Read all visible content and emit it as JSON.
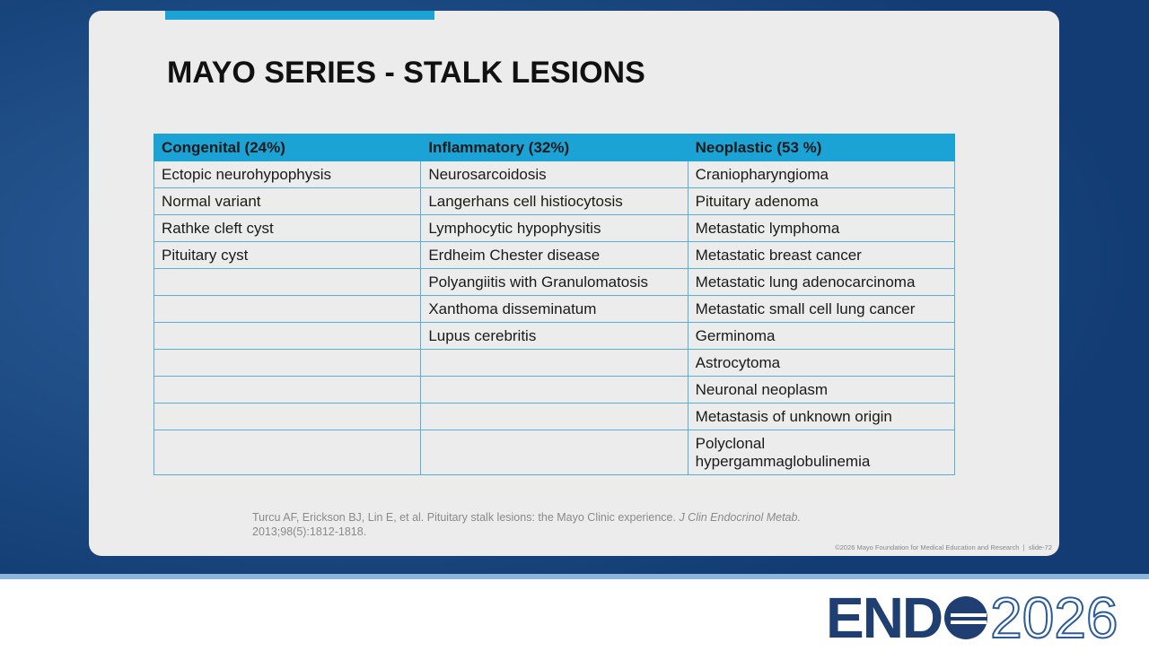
{
  "slide": {
    "title": "MAYO SERIES - STALK LESIONS"
  },
  "table": {
    "header": [
      "Congenital (24%)",
      "Inflammatory (32%)",
      "Neoplastic (53 %)"
    ],
    "rows": [
      [
        "Ectopic neurohypophysis",
        "Neurosarcoidosis",
        "Craniopharyngioma"
      ],
      [
        "Normal variant",
        "Langerhans cell histiocytosis",
        "Pituitary adenoma"
      ],
      [
        "Rathke cleft cyst",
        "Lymphocytic hypophysitis",
        "Metastatic lymphoma"
      ],
      [
        "Pituitary cyst",
        "Erdheim Chester disease",
        "Metastatic breast cancer"
      ],
      [
        null,
        "Polyangiitis with Granulomatosis",
        "Metastatic lung adenocarcinoma"
      ],
      [
        null,
        "Xanthoma disseminatum",
        "Metastatic small cell lung cancer"
      ],
      [
        null,
        "Lupus cerebritis",
        "Germinoma"
      ],
      [
        null,
        null,
        "Astrocytoma"
      ],
      [
        null,
        null,
        "Neuronal neoplasm"
      ],
      [
        null,
        null,
        "Metastasis of unknown origin"
      ],
      [
        null,
        null,
        "Polyclonal hypergammaglobulinemia"
      ]
    ]
  },
  "citation": {
    "before": "Turcu AF, Erickson BJ, Lin E, et al. Pituitary stalk lesions: the Mayo Clinic experience.",
    "journal": "J Clin Endocrinol Metab.",
    "after": "2013;98(5):1812-1818."
  },
  "footer": "©2026 Mayo Foundation for Medical Education and Research  |  slide-72",
  "logo": {
    "left": "END",
    "right": "2026"
  }
}
